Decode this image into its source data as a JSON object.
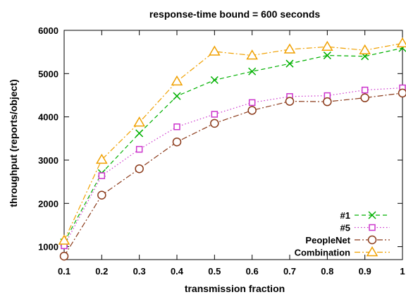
{
  "chart_data": {
    "type": "line",
    "title": "response-time bound = 600 seconds",
    "xlabel": "transmission fraction",
    "ylabel": "throughput (reports/object)",
    "xlim": [
      0.1,
      1.0
    ],
    "ylim": [
      700,
      6000
    ],
    "xticks": [
      0.1,
      0.2,
      0.3,
      0.4,
      0.5,
      0.6,
      0.7,
      0.8,
      0.9,
      1.0
    ],
    "xtick_labels": [
      "0.1",
      "0.2",
      "0.3",
      "0.4",
      "0.5",
      "0.6",
      "0.7",
      "0.8",
      "0.9",
      "1"
    ],
    "yticks": [
      1000,
      2000,
      3000,
      4000,
      5000,
      6000
    ],
    "ytick_labels": [
      "1000",
      "2000",
      "3000",
      "4000",
      "5000",
      "6000"
    ],
    "grid": false,
    "legend_position": "bottom-right",
    "x": [
      0.1,
      0.2,
      0.3,
      0.4,
      0.5,
      0.6,
      0.7,
      0.8,
      0.9,
      1.0
    ],
    "series": [
      {
        "name": "#1",
        "color": "#00b000",
        "dash": "dashed",
        "marker": "x",
        "values": [
          1100,
          2700,
          3620,
          4480,
          4850,
          5050,
          5230,
          5420,
          5400,
          5590
        ]
      },
      {
        "name": "#5",
        "color": "#cc33cc",
        "dash": "dotted",
        "marker": "square",
        "values": [
          1020,
          2640,
          3250,
          3770,
          4060,
          4330,
          4470,
          4490,
          4620,
          4670
        ]
      },
      {
        "name": "PeopleNet",
        "color": "#8b3a1a",
        "dash": "dashdot",
        "marker": "circle",
        "values": [
          780,
          2190,
          2800,
          3420,
          3850,
          4150,
          4360,
          4350,
          4440,
          4550
        ]
      },
      {
        "name": "Combination",
        "color": "#f0a000",
        "dash": "dashdot",
        "marker": "triangle",
        "values": [
          1140,
          3010,
          3870,
          4820,
          5510,
          5420,
          5560,
          5620,
          5540,
          5700
        ]
      }
    ]
  }
}
